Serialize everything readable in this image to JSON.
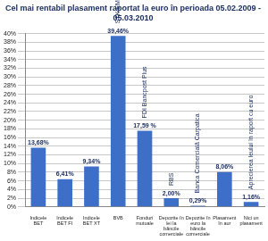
{
  "chart_data": {
    "type": "bar",
    "title": "Cel mai rentabil plasament raportat la euro în perioada 05.02.2009 - 05.03.2010",
    "categories": [
      "Indicele BET",
      "Indicele BET FI",
      "Indicele BET XT",
      "BVB",
      "Fonduri mutuale",
      "Depozite în lei la băncile comerciale",
      "Depozite în euro la băncile comerciale",
      "Plasament în aur",
      "Nici un plasament"
    ],
    "values": [
      13.68,
      6.41,
      9.34,
      39.46,
      17.59,
      2.0,
      0.29,
      8.06,
      1.16
    ],
    "value_labels": [
      "13,68%",
      "6,41%",
      "9,34%",
      "39,46%",
      "17,59 %",
      "2,00%",
      "0,29%",
      "8,06%",
      "1,16%"
    ],
    "data_labels": true,
    "color": "#3d6fc9",
    "ylim": [
      0,
      40
    ],
    "yticks": [
      {
        "value": 0,
        "label": "0%"
      },
      {
        "value": 2,
        "label": "2%"
      },
      {
        "value": 4,
        "label": "4%"
      },
      {
        "value": 6,
        "label": "6%"
      },
      {
        "value": 8,
        "label": "8%"
      },
      {
        "value": 10,
        "label": "10%"
      },
      {
        "value": 12,
        "label": "12%"
      },
      {
        "value": 14,
        "label": "14%"
      },
      {
        "value": 16,
        "label": "16%"
      },
      {
        "value": 18,
        "label": "18%"
      },
      {
        "value": 20,
        "label": "20%"
      },
      {
        "value": 22,
        "label": "22%"
      },
      {
        "value": 24,
        "label": "24%"
      },
      {
        "value": 26,
        "label": "26%"
      },
      {
        "value": 28,
        "label": "28%"
      },
      {
        "value": 30,
        "label": "30%"
      },
      {
        "value": 32,
        "label": "32%"
      },
      {
        "value": 34,
        "label": "34%"
      },
      {
        "value": 36,
        "label": "36%"
      },
      {
        "value": 38,
        "label": "38%"
      },
      {
        "value": 40,
        "label": "40%"
      }
    ],
    "grid": true,
    "annotations": [
      {
        "category": "BVB",
        "text": "STK EMERGENT"
      },
      {
        "category": "Fonduri mutuale",
        "text": "FDI Bancpost Plus"
      },
      {
        "category": "Depozite în lei la băncile comerciale",
        "text": "RBS"
      },
      {
        "category": "Depozite în euro la băncile comerciale",
        "text": "Banca Comercială Carpatica"
      },
      {
        "category": "Nici un plasament",
        "text": "Aprecierea leului în raport cu euro"
      }
    ]
  }
}
